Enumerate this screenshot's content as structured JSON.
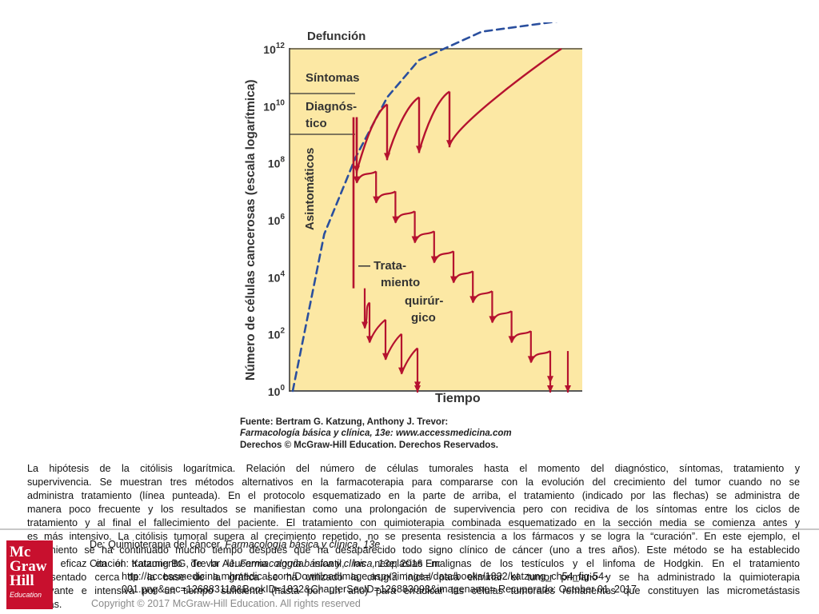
{
  "chart_data": {
    "type": "line",
    "title": "",
    "xlabel": "Tiempo",
    "ylabel": "Número de células cancerosas (escala logarítmica)",
    "yscale": "log",
    "ylim": [
      1,
      1000000000000
    ],
    "y_ticks": [
      {
        "base": "10",
        "exp": "0"
      },
      {
        "base": "10",
        "exp": "2"
      },
      {
        "base": "10",
        "exp": "4"
      },
      {
        "base": "10",
        "exp": "6"
      },
      {
        "base": "10",
        "exp": "8"
      },
      {
        "base": "10",
        "exp": "10"
      },
      {
        "base": "10",
        "exp": "12"
      }
    ],
    "threshold_labels": [
      "Defunción",
      "Síntomas",
      "Diagnós-",
      "tico",
      "Asintomáticos"
    ],
    "annotation": [
      "— Trata-",
      "miento",
      "quirúr-",
      "gico"
    ],
    "thresholds_log10": {
      "defuncion": 12,
      "sintomas": 11,
      "diagnostico": 9.6
    },
    "dashed_growth_log10": [
      [
        0,
        0
      ],
      [
        0.1,
        5.5
      ],
      [
        0.2,
        8.2
      ],
      [
        0.3,
        10.3
      ],
      [
        0.4,
        11.6
      ],
      [
        0.6,
        12.6
      ],
      [
        1.0,
        13.2
      ]
    ],
    "protocol_top_cycle_start_log10": [
      9.6,
      10.05,
      10.3,
      10.5
    ],
    "protocol_middle_cycle_start_log10": [
      8.4,
      7.7,
      7.0,
      6.3,
      5.6,
      4.9,
      4.2,
      3.5,
      2.8,
      2.1,
      1.4
    ]
  },
  "source": {
    "line1": "Fuente: Bertram G. Katzung, Anthony J. Trevor:",
    "line2": "Farmacología básica y clínica, 13e: www.accessmedicina.com",
    "line3": "Derechos © McGraw-Hill Education. Derechos Reservados."
  },
  "caption": {
    "lines": [
      "La hipótesis de la citólisis logarítmica. Relación del número de células tumorales hasta el momento del diagnóstico, síntomas, tratamiento y",
      "supervivencia. Se muestran tres métodos alternativos en la farmacoterapia para compararse con la evolución del crecimiento del tumor cuando no se",
      "administra tratamiento (línea punteada). En el protocolo esquematizado en la parte de arriba, el tratamiento (indicado por las flechas) se administra de",
      "manera poco frecuente y los resultados se manifiestan como una prolongación de supervivencia pero con recidiva de los síntomas entre los ciclos de",
      "tratamiento y al final el fallecimiento del paciente. El tratamiento con quimioterapia combinada esquematizado en la sección media se comienza antes y",
      "es más intensivo. La citólisis tumoral supera al crecimiento repetido, no se presenta resistencia a los fármacos y se logra la “curación”. En este ejemplo, el",
      "tratamiento se ha continuado mucho tiempo después que ha desaparecido todo signo clínico de cáncer (uno a tres años). Este método se ha establecido",
      "como eficaz en el tratamiento de la leucemia aguda infantil, las neoplasias malignas de los testículos y el linfoma de Hodgkin. En el tratamiento",
      "representado cerca de la base de la gráfica se ha utilizado la cirugía inicial para eliminar el tumor primario y se ha administrado la quimioterapia",
      "adyuvante e intensiva por un tiempo suficiente (hasta por un año) para erradicar las células tumorales remanentes que constituyen las micrometástasis",
      "ocultas."
    ]
  },
  "citation": {
    "from_prefix": "De: Quimioterapia del cáncer, ",
    "from_book": "Farmacología básica y clínica, 13e",
    "cite_prefix": "Citación: Katzung BG, Trevor AJ. ",
    "cite_book": "Farmacología básica y clínica, 13e",
    "cite_suffix": "; 2016 En:",
    "url1": "http://accessmedicina.mhmedical.com/DownloadImage.aspx?image=/data/books/1832/katzung_ch54_fig-54-",
    "url2": "001.png&sec=126883110&BookID=1832&ChapterSecID=126883093&imagename= Recuperado: October 01, 2017"
  },
  "copyright": "Copyright © 2017 McGraw-Hill Education. All rights reserved",
  "logo": {
    "line1": "Mc",
    "line2": "Graw",
    "line3": "Hill",
    "line4": "Education"
  }
}
